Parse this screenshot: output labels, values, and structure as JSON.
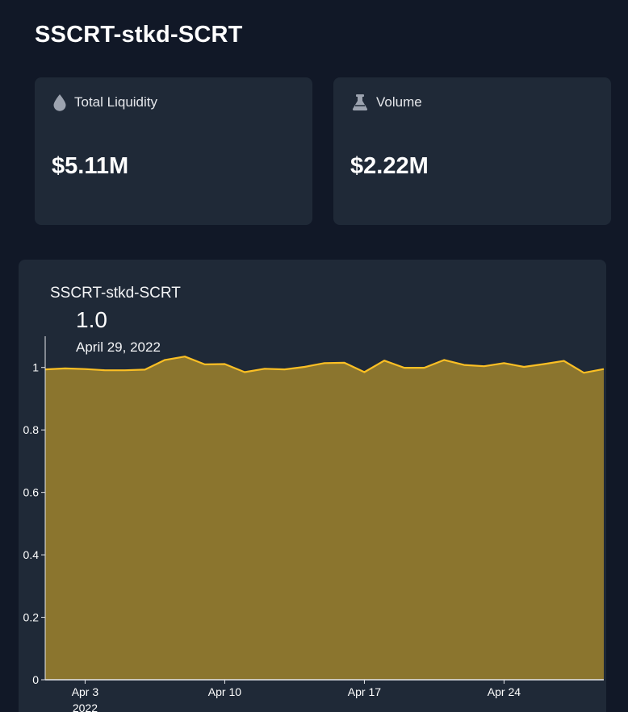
{
  "header": {
    "title": "SSCRT-stkd-SCRT"
  },
  "stats": {
    "liquidity": {
      "label": "Total Liquidity",
      "value": "$5.11M",
      "icon": "drop-icon"
    },
    "volume": {
      "label": "Volume",
      "value": "$2.22M",
      "icon": "flask-icon"
    }
  },
  "chart": {
    "title": "SSCRT-stkd-SCRT",
    "current_value": "1.0",
    "current_date": "April 29, 2022",
    "line_color": "#fbbf24",
    "fill_color": "#8b752e"
  },
  "chart_data": {
    "type": "area",
    "x_tick_labels": [
      "Apr 3",
      "Apr 10",
      "Apr 17",
      "Apr 24"
    ],
    "x_tick_sublabel": "2022",
    "y_tick_labels": [
      "0",
      "0.2",
      "0.4",
      "0.6",
      "0.8",
      "1"
    ],
    "y_ticks": [
      0,
      0.2,
      0.4,
      0.6,
      0.8,
      1
    ],
    "ylim": [
      0,
      1.1
    ],
    "x_start": "2022-04-01",
    "x_end": "2022-04-29",
    "grid": false,
    "series": [
      {
        "x": [
          "2022-04-01",
          "2022-04-02",
          "2022-04-03",
          "2022-04-04",
          "2022-04-05",
          "2022-04-06",
          "2022-04-07",
          "2022-04-08",
          "2022-04-09",
          "2022-04-10",
          "2022-04-11",
          "2022-04-12",
          "2022-04-13",
          "2022-04-14",
          "2022-04-15",
          "2022-04-16",
          "2022-04-17",
          "2022-04-18",
          "2022-04-19",
          "2022-04-20",
          "2022-04-21",
          "2022-04-22",
          "2022-04-23",
          "2022-04-24",
          "2022-04-25",
          "2022-04-26",
          "2022-04-27",
          "2022-04-28",
          "2022-04-29"
        ],
        "values": [
          0.994,
          0.997,
          0.995,
          0.991,
          0.991,
          0.993,
          1.024,
          1.035,
          1.01,
          1.011,
          0.985,
          0.996,
          0.994,
          1.002,
          1.014,
          1.015,
          0.985,
          1.022,
          0.999,
          0.999,
          1.024,
          1.008,
          1.004,
          1.014,
          1.002,
          1.011,
          1.021,
          0.983,
          0.995
        ]
      }
    ]
  }
}
